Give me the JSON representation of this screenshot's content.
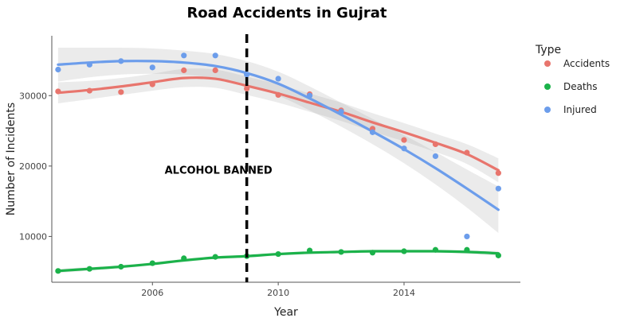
{
  "chart_data": {
    "type": "scatter",
    "title": "Road Accidents in Gujrat",
    "xlabel": "Year",
    "ylabel": "Number of Incidents",
    "xlim": [
      2002.8,
      2017.7
    ],
    "ylim": [
      3500,
      38500
    ],
    "x_ticks": [
      2006,
      2010,
      2014
    ],
    "y_ticks": [
      10000,
      20000,
      30000
    ],
    "y_tick_labels": [
      "10000",
      "20000",
      "30000"
    ],
    "x_tick_labels": [
      "2006",
      "2010",
      "2014"
    ],
    "grid": false,
    "legend": {
      "title": "Type",
      "position": "right",
      "entries": [
        "Accidents",
        "Deaths",
        "Injured"
      ]
    },
    "annotation": {
      "text": "ALCOHOL BANNED",
      "vline_x": 2009,
      "text_x": 2008.1,
      "text_y": 19500
    },
    "x": [
      2003,
      2004,
      2005,
      2006,
      2007,
      2008,
      2009,
      2010,
      2011,
      2012,
      2013,
      2014,
      2015,
      2016,
      2017
    ],
    "series": [
      {
        "name": "Accidents",
        "color": "#E8756D",
        "values": [
          30600,
          30700,
          30500,
          31600,
          33600,
          33600,
          31000,
          30100,
          30200,
          27900,
          25300,
          23700,
          23100,
          21900,
          19000
        ],
        "smooth": [
          30400,
          30800,
          31300,
          31900,
          32500,
          32400,
          31400,
          30300,
          29000,
          27700,
          26200,
          24800,
          23300,
          21700,
          19400
        ],
        "band": [
          1500,
          1300,
          1200,
          1200,
          1300,
          1300,
          1300,
          1300,
          1300,
          1300,
          1300,
          1300,
          1300,
          1400,
          1700
        ]
      },
      {
        "name": "Deaths",
        "color": "#1BB24A",
        "values": [
          5100,
          5400,
          5700,
          6200,
          6900,
          7100,
          7200,
          7500,
          8000,
          7800,
          7700,
          7900,
          8100,
          8100,
          7300
        ],
        "smooth": [
          5100,
          5400,
          5700,
          6100,
          6600,
          7000,
          7200,
          7500,
          7700,
          7800,
          7900,
          7900,
          7900,
          7800,
          7600
        ],
        "band": [
          300,
          250,
          200,
          200,
          200,
          200,
          200,
          200,
          200,
          200,
          200,
          200,
          200,
          250,
          350
        ]
      },
      {
        "name": "Injured",
        "color": "#6C9DEB",
        "values": [
          33700,
          34400,
          34900,
          34000,
          35700,
          35700,
          33000,
          32400,
          30000,
          27700,
          24800,
          22500,
          21400,
          10000,
          16800
        ],
        "smooth": [
          34400,
          34700,
          34900,
          34900,
          34700,
          34200,
          33200,
          31700,
          29600,
          27300,
          24900,
          22400,
          19700,
          16800,
          13800
        ],
        "band": [
          2400,
          2100,
          1900,
          1800,
          1700,
          1700,
          1700,
          1700,
          1700,
          1700,
          1800,
          2000,
          2300,
          2700,
          3300
        ]
      }
    ]
  }
}
